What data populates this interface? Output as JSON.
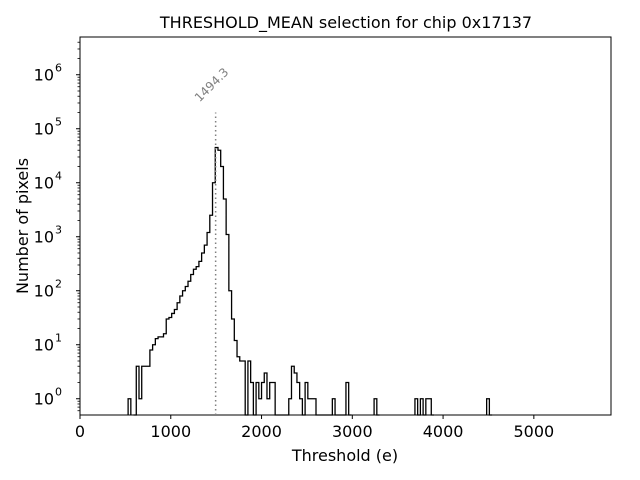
{
  "chart_data": {
    "type": "histogram",
    "title": "THRESHOLD_MEAN selection for chip 0x17137",
    "xlabel": "Threshold (e)",
    "ylabel": "Number of pixels",
    "xlim": [
      0,
      5850
    ],
    "ylim": [
      0.5,
      5000000
    ],
    "yscale": "log",
    "grid": false,
    "legend": "none",
    "x_ticks": [
      {
        "value": 0,
        "label": "0"
      },
      {
        "value": 1000,
        "label": "1000"
      },
      {
        "value": 2000,
        "label": "2000"
      },
      {
        "value": 3000,
        "label": "3000"
      },
      {
        "value": 4000,
        "label": "4000"
      },
      {
        "value": 5000,
        "label": "5000"
      }
    ],
    "y_ticks": [
      {
        "value": 1,
        "base": "10",
        "exp": "0"
      },
      {
        "value": 10,
        "base": "10",
        "exp": "1"
      },
      {
        "value": 100,
        "base": "10",
        "exp": "2"
      },
      {
        "value": 1000,
        "base": "10",
        "exp": "3"
      },
      {
        "value": 10000,
        "base": "10",
        "exp": "4"
      },
      {
        "value": 100000,
        "base": "10",
        "exp": "5"
      },
      {
        "value": 1000000,
        "base": "10",
        "exp": "6"
      }
    ],
    "bin_width": 30,
    "bins": [
      [
        530,
        1
      ],
      [
        590,
        0
      ],
      [
        620,
        4
      ],
      [
        650,
        1
      ],
      [
        680,
        4
      ],
      [
        710,
        4
      ],
      [
        740,
        4
      ],
      [
        770,
        8
      ],
      [
        800,
        10
      ],
      [
        830,
        13
      ],
      [
        860,
        14
      ],
      [
        890,
        14
      ],
      [
        920,
        16
      ],
      [
        950,
        30
      ],
      [
        980,
        32
      ],
      [
        1010,
        38
      ],
      [
        1040,
        45
      ],
      [
        1070,
        60
      ],
      [
        1100,
        80
      ],
      [
        1130,
        100
      ],
      [
        1160,
        120
      ],
      [
        1190,
        150
      ],
      [
        1220,
        200
      ],
      [
        1250,
        250
      ],
      [
        1280,
        280
      ],
      [
        1310,
        350
      ],
      [
        1340,
        500
      ],
      [
        1370,
        700
      ],
      [
        1400,
        1200
      ],
      [
        1430,
        2500
      ],
      [
        1460,
        10000
      ],
      [
        1490,
        45000
      ],
      [
        1520,
        40000
      ],
      [
        1550,
        20000
      ],
      [
        1580,
        5000
      ],
      [
        1610,
        1100
      ],
      [
        1640,
        100
      ],
      [
        1670,
        30
      ],
      [
        1700,
        12
      ],
      [
        1730,
        6
      ],
      [
        1760,
        5
      ],
      [
        1790,
        5
      ],
      [
        1820,
        0
      ],
      [
        1850,
        5
      ],
      [
        1880,
        2
      ],
      [
        1910,
        0
      ],
      [
        1940,
        2
      ],
      [
        1970,
        1
      ],
      [
        2000,
        2
      ],
      [
        2030,
        3
      ],
      [
        2060,
        1
      ],
      [
        2090,
        2
      ],
      [
        2120,
        2
      ],
      [
        2150,
        0
      ],
      [
        2180,
        0
      ],
      [
        2210,
        0
      ],
      [
        2240,
        0
      ],
      [
        2270,
        0
      ],
      [
        2300,
        1
      ],
      [
        2330,
        4
      ],
      [
        2360,
        3
      ],
      [
        2390,
        2
      ],
      [
        2420,
        1
      ],
      [
        2450,
        0
      ],
      [
        2480,
        2
      ],
      [
        2510,
        1
      ],
      [
        2540,
        1
      ],
      [
        2570,
        1
      ],
      [
        2600,
        0
      ],
      [
        2630,
        0
      ],
      [
        2660,
        0
      ],
      [
        2690,
        0
      ],
      [
        2720,
        0
      ],
      [
        2750,
        0
      ],
      [
        2780,
        1
      ],
      [
        2810,
        0
      ],
      [
        2840,
        0
      ],
      [
        2870,
        0
      ],
      [
        2900,
        0
      ],
      [
        2930,
        2
      ],
      [
        2960,
        0
      ],
      [
        3240,
        1
      ],
      [
        3270,
        0
      ],
      [
        3690,
        1
      ],
      [
        3720,
        0
      ],
      [
        3750,
        1
      ],
      [
        3780,
        0
      ],
      [
        3810,
        1
      ],
      [
        3840,
        1
      ],
      [
        3870,
        0
      ],
      [
        4480,
        1
      ],
      [
        4510,
        0
      ]
    ],
    "annotations": [
      {
        "type": "vline",
        "x": 1494.3,
        "label": "1494.3",
        "style": "dotted",
        "color": "#808080"
      }
    ]
  }
}
